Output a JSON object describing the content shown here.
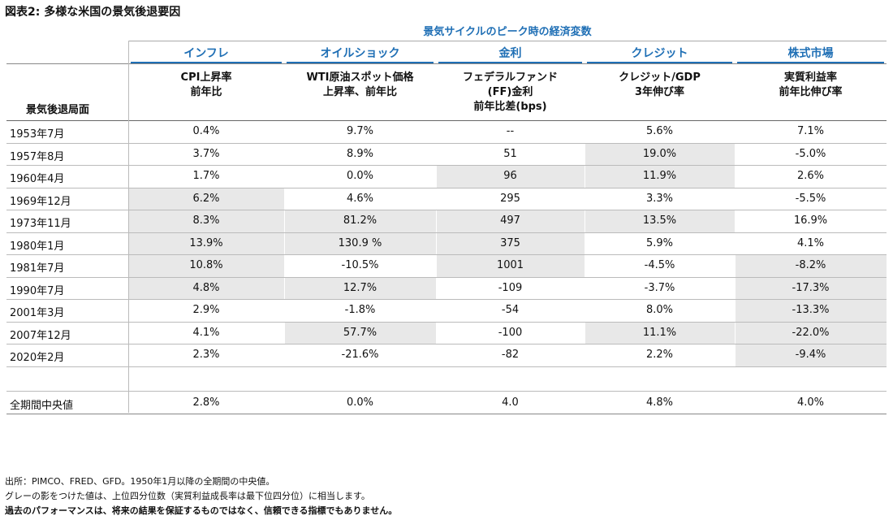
{
  "title": "図表2: 多様な米国の景気後退要因",
  "header": {
    "super": "景気サイクルのピーク時の経済変数",
    "row_label": "景気後退局面",
    "groups": [
      "インフレ",
      "オイルショック",
      "金利",
      "クレジット",
      "株式市場"
    ],
    "columns": [
      [
        "CPI上昇率",
        "前年比"
      ],
      [
        "WTI原油スポット価格",
        "上昇率、前年比"
      ],
      [
        "フェデラルファンド",
        "(FF)金利",
        "前年比差(bps)"
      ],
      [
        "クレジット/GDP",
        "3年伸び率"
      ],
      [
        "実質利益率",
        "前年比伸び率"
      ]
    ]
  },
  "table": {
    "shade_color": "#e8e8e8",
    "rows": [
      {
        "label": "1953年7月",
        "cells": [
          "0.4%",
          "9.7%",
          "--",
          "5.6%",
          "7.1%"
        ],
        "shaded": [
          false,
          false,
          false,
          false,
          false
        ]
      },
      {
        "label": "1957年8月",
        "cells": [
          "3.7%",
          "8.9%",
          "51",
          "19.0%",
          "-5.0%"
        ],
        "shaded": [
          false,
          false,
          false,
          true,
          false
        ]
      },
      {
        "label": "1960年4月",
        "cells": [
          "1.7%",
          "0.0%",
          "96",
          "11.9%",
          "2.6%"
        ],
        "shaded": [
          false,
          false,
          true,
          true,
          false
        ]
      },
      {
        "label": "1969年12月",
        "cells": [
          "6.2%",
          "4.6%",
          "295",
          "3.3%",
          "-5.5%"
        ],
        "shaded": [
          true,
          false,
          false,
          false,
          false
        ]
      },
      {
        "label": "1973年11月",
        "cells": [
          "8.3%",
          "81.2%",
          "497",
          "13.5%",
          "16.9%"
        ],
        "shaded": [
          true,
          true,
          true,
          true,
          false
        ]
      },
      {
        "label": "1980年1月",
        "cells": [
          "13.9%",
          "130.9 %",
          "375",
          "5.9%",
          "4.1%"
        ],
        "shaded": [
          true,
          true,
          true,
          false,
          false
        ]
      },
      {
        "label": "1981年7月",
        "cells": [
          "10.8%",
          "-10.5%",
          "1001",
          "-4.5%",
          "-8.2%"
        ],
        "shaded": [
          true,
          false,
          true,
          false,
          true
        ]
      },
      {
        "label": "1990年7月",
        "cells": [
          "4.8%",
          "12.7%",
          "-109",
          "-3.7%",
          "-17.3%"
        ],
        "shaded": [
          true,
          true,
          false,
          false,
          true
        ]
      },
      {
        "label": "2001年3月",
        "cells": [
          "2.9%",
          "-1.8%",
          "-54",
          "8.0%",
          "-13.3%"
        ],
        "shaded": [
          false,
          false,
          false,
          false,
          true
        ]
      },
      {
        "label": "2007年12月",
        "cells": [
          "4.1%",
          "57.7%",
          "-100",
          "11.1%",
          "-22.0%"
        ],
        "shaded": [
          false,
          true,
          false,
          true,
          true
        ]
      },
      {
        "label": "2020年2月",
        "cells": [
          "2.3%",
          "-21.6%",
          "-82",
          "2.2%",
          "-9.4%"
        ],
        "shaded": [
          false,
          false,
          false,
          false,
          true
        ]
      }
    ],
    "median": {
      "label": "全期間中央値",
      "cells": [
        "2.8%",
        "0.0%",
        "4.0",
        "4.8%",
        "4.0%"
      ]
    }
  },
  "footnotes": [
    "出所：PIMCO、FRED、GFD。1950年1月以降の全期間の中央値。",
    "グレーの影をつけた値は、上位四分位数（実質利益成長率は最下位四分位）に相当します。",
    "過去のパフォーマンスは、将来の結果を保証するものではなく、信頼できる指標でもありません。"
  ]
}
